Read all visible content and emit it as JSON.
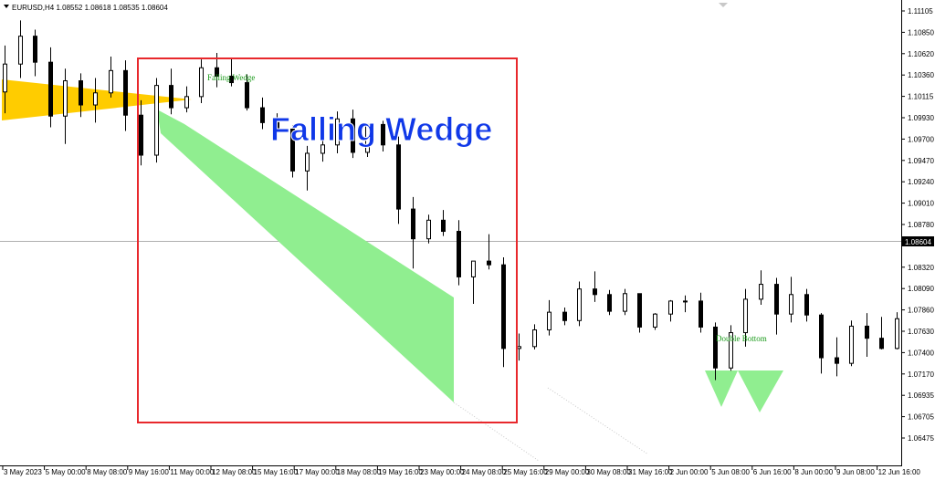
{
  "window": {
    "header_text": "EURUSD,H4  1.08552 1.08618 1.08535 1.08604",
    "menu_icon": "triangle-down-icon"
  },
  "price_axis": {
    "labels": [
      "1.11105",
      "1.10850",
      "1.10620",
      "1.10360",
      "1.10115",
      "1.09930",
      "1.09700",
      "1.09470",
      "1.09240",
      "1.09010",
      "1.08780",
      "1.08320",
      "1.08090",
      "1.07860",
      "1.07630",
      "1.07400",
      "1.07170",
      "1.06935",
      "1.06705",
      "1.06475"
    ],
    "current_price": "1.08604"
  },
  "time_axis": {
    "labels": [
      "3 May 2023",
      "5 May 00:00",
      "8 May 08:00",
      "9 May 16:00",
      "11 May 00:00",
      "12 May 08:00",
      "15 May 16:00",
      "17 May 00:00",
      "18 May 08:00",
      "19 May 16:00",
      "23 May 00:00",
      "24 May 08:00",
      "25 May 16:00",
      "29 May 00:00",
      "30 May 08:00",
      "31 May 16:00",
      "2 Jun 00:00",
      "5 Jun 08:00",
      "6 Jun 16:00",
      "8 Jun 00:00",
      "9 Jun 08:00",
      "12 Jun 16:00"
    ]
  },
  "annotations": {
    "falling_wedge_small": "Falling Wedge",
    "falling_wedge_big": "Falling Wedge",
    "double_bottom": "Double Bottom"
  },
  "colors": {
    "bull": "#ffffff",
    "bear": "#000000",
    "wedge_fill": "#90ee90",
    "triangle_fill": "#ffcc00",
    "box_stroke": "#e8282c",
    "label_green": "#1a9a1a",
    "title_blue": "#1038e8"
  },
  "chart_data": {
    "type": "candlestick",
    "symbol": "EURUSD",
    "timeframe": "H4",
    "ohlc_current": {
      "open": 1.08552,
      "high": 1.08618,
      "low": 1.08535,
      "close": 1.08604
    },
    "ylim": [
      1.0634,
      1.1121
    ],
    "candles": [
      [
        1.1026,
        1.1076,
        1.1003,
        1.1056
      ],
      [
        1.1056,
        1.1103,
        1.1041,
        1.1086
      ],
      [
        1.1086,
        1.1093,
        1.1043,
        1.1058
      ],
      [
        1.1058,
        1.1074,
        1.0988,
        1.1
      ],
      [
        1.1,
        1.1051,
        1.097,
        1.1038
      ],
      [
        1.1038,
        1.1046,
        1.0999,
        1.1012
      ],
      [
        1.1012,
        1.1041,
        1.0993,
        1.1025
      ],
      [
        1.1025,
        1.1064,
        1.102,
        1.1049
      ],
      [
        1.1049,
        1.106,
        1.0984,
        1.1001
      ],
      [
        1.1001,
        1.1017,
        1.0947,
        1.0958
      ],
      [
        1.0958,
        1.1041,
        1.095,
        1.1033
      ],
      [
        1.1033,
        1.1051,
        1.1002,
        1.1009
      ],
      [
        1.1009,
        1.1032,
        1.1004,
        1.1021
      ],
      [
        1.1021,
        1.1061,
        1.1014,
        1.1052
      ],
      [
        1.1052,
        1.1068,
        1.1031,
        1.1043
      ],
      [
        1.1043,
        1.1063,
        1.1032,
        1.1036
      ],
      [
        1.1036,
        1.1045,
        1.1006,
        1.1009
      ],
      [
        1.1009,
        1.102,
        1.0986,
        1.0993
      ],
      [
        1.0993,
        1.1003,
        1.0977,
        1.0986
      ],
      [
        1.0986,
        1.099,
        1.0934,
        1.0941
      ],
      [
        1.0941,
        1.0968,
        1.092,
        1.096
      ],
      [
        1.096,
        1.0981,
        1.0951,
        1.0969
      ],
      [
        1.0969,
        1.1005,
        1.096,
        1.0997
      ],
      [
        1.0997,
        1.1007,
        1.0955,
        1.0961
      ],
      [
        1.0961,
        1.0992,
        1.0956,
        1.0991
      ],
      [
        1.0991,
        1.0995,
        1.0962,
        1.0969
      ],
      [
        1.0969,
        1.0978,
        1.0884,
        1.09
      ],
      [
        1.09,
        1.0913,
        1.0836,
        1.0868
      ],
      [
        1.0868,
        1.0894,
        1.0863,
        1.0888
      ],
      [
        1.0888,
        1.0899,
        1.0871,
        1.0876
      ],
      [
        1.0876,
        1.0888,
        1.0818,
        1.0827
      ],
      [
        1.0827,
        1.0844,
        1.0798,
        1.0844
      ],
      [
        1.0844,
        1.0873,
        1.0835,
        1.084
      ],
      [
        1.084,
        1.0848,
        1.073,
        1.075
      ],
      [
        1.075,
        1.0766,
        1.0737,
        1.0752
      ],
      [
        1.0752,
        1.0776,
        1.0749,
        1.077
      ],
      [
        1.077,
        1.0802,
        1.0764,
        1.0789
      ],
      [
        1.0789,
        1.0794,
        1.0775,
        1.078
      ],
      [
        1.078,
        1.0822,
        1.0774,
        1.0814
      ],
      [
        1.0814,
        1.0833,
        1.08,
        1.0808
      ],
      [
        1.0808,
        1.0813,
        1.0786,
        1.079
      ],
      [
        1.079,
        1.0814,
        1.0786,
        1.0809
      ],
      [
        1.0809,
        1.0809,
        1.0767,
        1.0773
      ],
      [
        1.0773,
        1.0788,
        1.077,
        1.0787
      ],
      [
        1.0787,
        1.0802,
        1.0779,
        1.0801
      ],
      [
        1.0801,
        1.0807,
        1.0789,
        1.0801
      ],
      [
        1.0801,
        1.081,
        1.0767,
        1.0773
      ],
      [
        1.0773,
        1.0778,
        1.0716,
        1.0729
      ],
      [
        1.0729,
        1.0775,
        1.0726,
        1.0767
      ],
      [
        1.0767,
        1.0814,
        1.0752,
        1.0803
      ],
      [
        1.0803,
        1.0834,
        1.0797,
        1.0819
      ],
      [
        1.0819,
        1.0826,
        1.0765,
        1.0787
      ],
      [
        1.0787,
        1.0827,
        1.0778,
        1.0808
      ],
      [
        1.0808,
        1.0814,
        1.0779,
        1.0786
      ],
      [
        1.0786,
        1.0788,
        1.0723,
        1.074
      ],
      [
        1.074,
        1.0762,
        1.072,
        1.0734
      ],
      [
        1.0734,
        1.078,
        1.0731,
        1.0774
      ],
      [
        1.0774,
        1.0788,
        1.0741,
        1.0761
      ],
      [
        1.0761,
        1.0784,
        1.0749,
        1.075
      ],
      [
        1.075,
        1.0789,
        1.0749,
        1.0782
      ]
    ]
  }
}
